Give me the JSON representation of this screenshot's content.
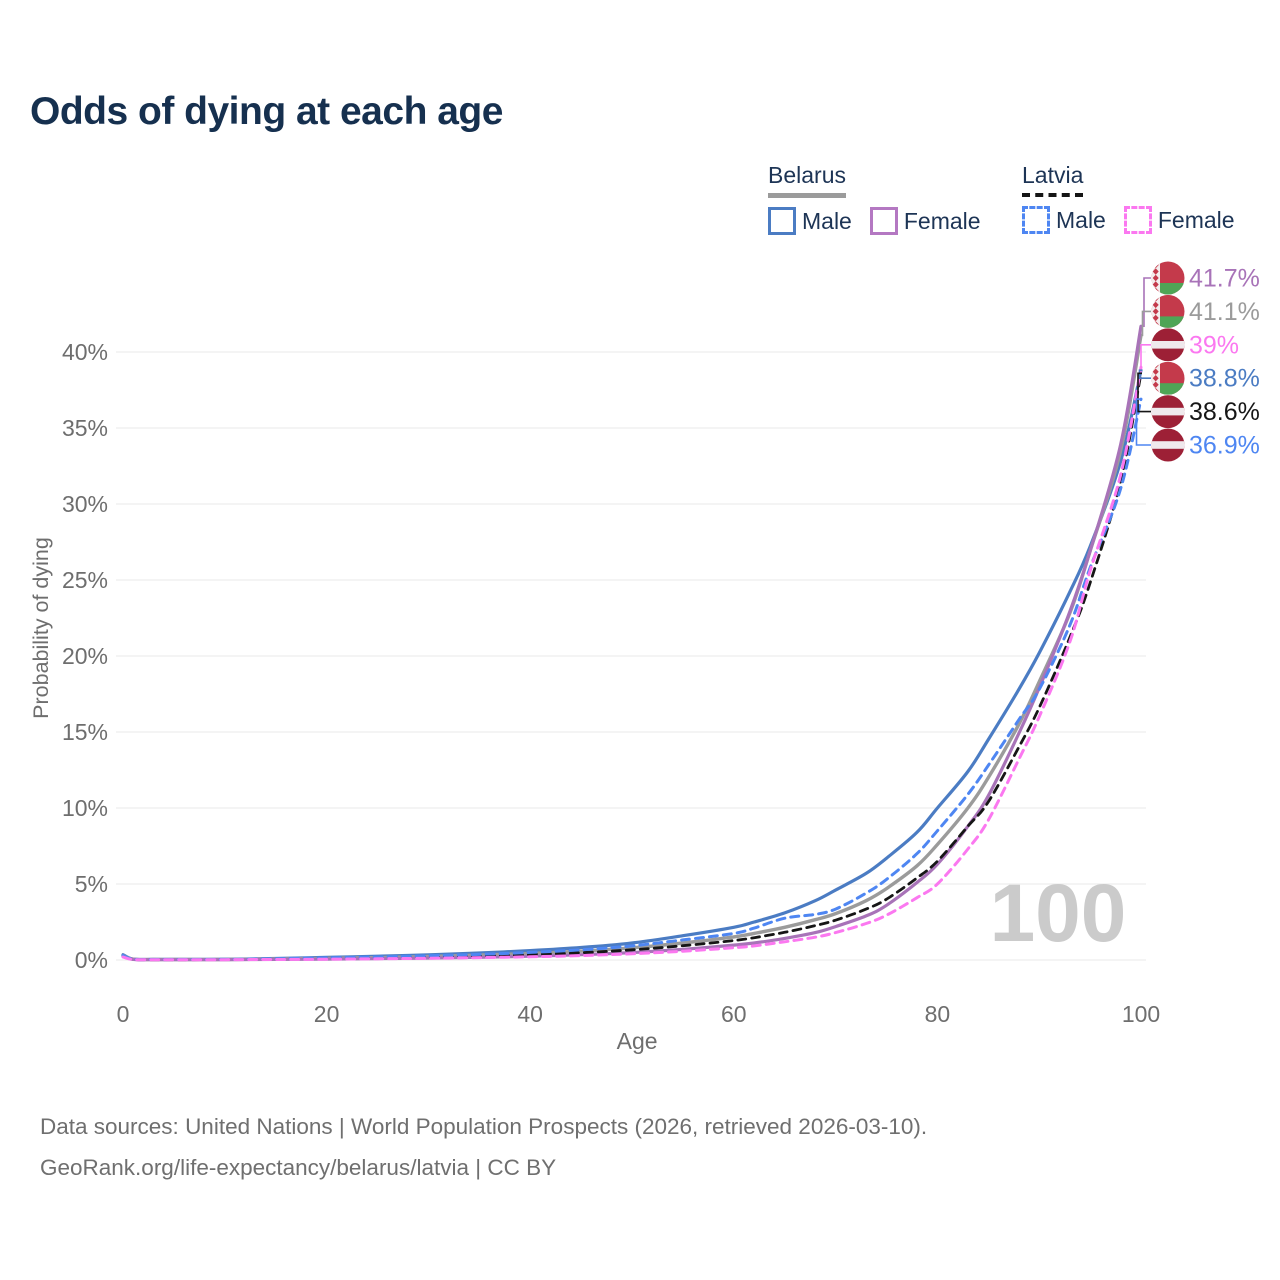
{
  "title": "Odds of dying at each age",
  "legend": {
    "groups": [
      {
        "label": "Belarus",
        "line_style": "solid",
        "underline_color": "#9b9b9b",
        "items": [
          {
            "label": "Male",
            "color": "#4b7cc3"
          },
          {
            "label": "Female",
            "color": "#b478c2"
          }
        ]
      },
      {
        "label": "Latvia",
        "line_style": "dashed",
        "underline_color": "#151515",
        "items": [
          {
            "label": "Male",
            "color": "#4e86f2"
          },
          {
            "label": "Female",
            "color": "#fb78f0"
          }
        ]
      }
    ]
  },
  "watermark": "100",
  "footer": {
    "line1": "Data sources: United Nations | World Population Prospects (2026, retrieved 2026-03-10).",
    "line2": "GeoRank.org/life-expectancy/belarus/latvia | CC BY"
  },
  "chart_data": {
    "type": "line",
    "title": "Odds of dying at each age",
    "xlabel": "Age",
    "ylabel": "Probability of dying",
    "xlim": [
      0,
      100
    ],
    "ylim_pct": [
      0,
      42
    ],
    "grid": "horizontal",
    "legend_position": "top-right",
    "x_ticks": [
      0,
      20,
      40,
      60,
      80,
      100
    ],
    "y_ticks": [
      {
        "value": 0,
        "label": "0%"
      },
      {
        "value": 5,
        "label": "5%"
      },
      {
        "value": 10,
        "label": "10%"
      },
      {
        "value": 15,
        "label": "15%"
      },
      {
        "value": 20,
        "label": "20%"
      },
      {
        "value": 25,
        "label": "25%"
      },
      {
        "value": 30,
        "label": "30%"
      },
      {
        "value": 35,
        "label": "35%"
      },
      {
        "value": 40,
        "label": "40%"
      }
    ],
    "x": [
      0,
      1,
      3,
      5,
      10,
      15,
      20,
      25,
      30,
      35,
      40,
      45,
      50,
      55,
      60,
      62,
      65,
      68,
      70,
      73,
      75,
      78,
      80,
      83,
      85,
      88,
      90,
      93,
      95,
      98,
      100
    ],
    "series": [
      {
        "name": "Belarus Male",
        "country": "Belarus",
        "flag": "belarus",
        "color": "#4b7cc3",
        "dash": "solid",
        "width": 3.2,
        "end_value_pct": 38.8,
        "end_label": "38.8%",
        "values": [
          0.35,
          0.06,
          0.04,
          0.04,
          0.05,
          0.1,
          0.17,
          0.25,
          0.34,
          0.46,
          0.62,
          0.82,
          1.12,
          1.6,
          2.15,
          2.5,
          3.1,
          3.9,
          4.6,
          5.7,
          6.7,
          8.4,
          10.0,
          12.4,
          14.5,
          17.8,
          20.2,
          24.2,
          27.2,
          32.8,
          38.8
        ]
      },
      {
        "name": "Belarus Total",
        "country": "Belarus",
        "flag": "belarus",
        "color": "#9b9b9b",
        "dash": "solid",
        "width": 3.4,
        "end_value_pct": 41.1,
        "end_label": "41.1%",
        "values": [
          0.3,
          0.05,
          0.03,
          0.03,
          0.035,
          0.065,
          0.11,
          0.16,
          0.23,
          0.32,
          0.43,
          0.58,
          0.8,
          1.12,
          1.52,
          1.75,
          2.15,
          2.65,
          3.05,
          3.9,
          4.7,
          6.2,
          7.6,
          10.0,
          12.0,
          15.5,
          18.3,
          22.8,
          26.9,
          33.5,
          41.1
        ]
      },
      {
        "name": "Belarus Female",
        "country": "Belarus",
        "flag": "belarus",
        "color": "#a873b8",
        "dash": "solid",
        "width": 3.2,
        "end_value_pct": 41.7,
        "end_label": "41.7%",
        "values": [
          0.25,
          0.04,
          0.02,
          0.02,
          0.025,
          0.04,
          0.06,
          0.09,
          0.13,
          0.18,
          0.25,
          0.35,
          0.49,
          0.7,
          0.98,
          1.12,
          1.42,
          1.8,
          2.2,
          2.9,
          3.6,
          5.1,
          6.3,
          8.8,
          10.8,
          14.9,
          17.9,
          22.9,
          26.9,
          33.9,
          41.7
        ]
      },
      {
        "name": "Latvia Total",
        "country": "Latvia",
        "flag": "latvia",
        "color": "#161616",
        "dash": "dashed",
        "width": 2.8,
        "end_value_pct": 38.6,
        "end_label": "38.6%",
        "values": [
          0.25,
          0.04,
          0.022,
          0.022,
          0.028,
          0.05,
          0.09,
          0.13,
          0.19,
          0.26,
          0.36,
          0.48,
          0.67,
          0.94,
          1.28,
          1.47,
          1.82,
          2.26,
          2.62,
          3.35,
          4.0,
          5.4,
          6.5,
          8.8,
          10.4,
          14.0,
          16.6,
          21.2,
          24.8,
          31.5,
          38.6
        ]
      },
      {
        "name": "Latvia Male",
        "country": "Latvia",
        "flag": "latvia",
        "color": "#4e86f2",
        "dash": "dashed",
        "width": 3.0,
        "end_value_pct": 36.9,
        "end_label": "36.9%",
        "values": [
          0.3,
          0.05,
          0.03,
          0.03,
          0.04,
          0.08,
          0.14,
          0.2,
          0.28,
          0.37,
          0.5,
          0.67,
          0.93,
          1.32,
          1.75,
          2.1,
          2.75,
          3.0,
          3.35,
          4.4,
          5.3,
          7.0,
          8.5,
          10.9,
          12.8,
          15.8,
          17.8,
          22.0,
          25.8,
          31.0,
          36.9
        ]
      },
      {
        "name": "Latvia Female",
        "country": "Latvia",
        "flag": "latvia",
        "color": "#fb78f0",
        "dash": "dashed",
        "width": 3.0,
        "end_value_pct": 39.0,
        "end_label": "39%",
        "values": [
          0.2,
          0.03,
          0.018,
          0.018,
          0.022,
          0.035,
          0.05,
          0.08,
          0.11,
          0.155,
          0.21,
          0.29,
          0.41,
          0.58,
          0.81,
          0.93,
          1.2,
          1.5,
          1.8,
          2.4,
          2.95,
          4.1,
          5.0,
          7.3,
          9.2,
          13.2,
          16.0,
          20.9,
          25.6,
          31.9,
          39.0
        ]
      }
    ]
  }
}
